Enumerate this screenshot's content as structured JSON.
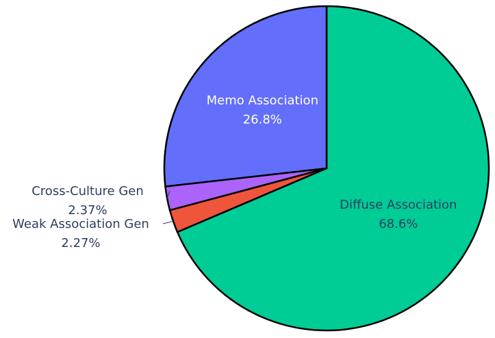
{
  "chart_data": {
    "type": "pie",
    "title": "",
    "legend": "none",
    "direction": "clockwise",
    "start_angle_deg": 90,
    "slices": [
      {
        "label": "Diffuse Association",
        "value": 68.6,
        "percent_label": "68.6%",
        "color": "#00cc96",
        "label_position": "inside"
      },
      {
        "label": "Weak Association Gen",
        "value": 2.27,
        "percent_label": "2.27%",
        "color": "#ef553b",
        "label_position": "outside"
      },
      {
        "label": "Cross-Culture Gen",
        "value": 2.37,
        "percent_label": "2.37%",
        "color": "#ab63fa",
        "label_position": "outside"
      },
      {
        "label": "Memo Association",
        "value": 26.8,
        "percent_label": "26.8%",
        "color": "#636efa",
        "label_position": "inside"
      }
    ]
  }
}
